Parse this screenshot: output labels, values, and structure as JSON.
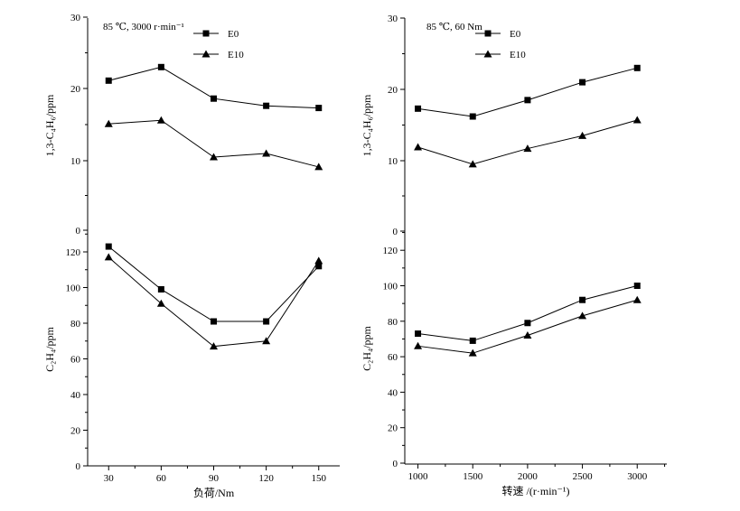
{
  "chart_data": [
    {
      "id": "a1",
      "type": "line",
      "annotation": "85 ℃, 3000 r·min⁻¹",
      "ylabel": "1,3-C₄H₆/ppm",
      "ylim": [
        0,
        30
      ],
      "yticks": [
        0,
        10,
        20,
        30
      ],
      "x": [
        30,
        60,
        90,
        120,
        150
      ],
      "series": [
        {
          "name": "E0",
          "marker": "square",
          "values": [
            21.1,
            23.0,
            18.6,
            17.6,
            17.3
          ]
        },
        {
          "name": "E10",
          "marker": "triangle",
          "values": [
            15.1,
            15.6,
            10.5,
            11.0,
            9.1
          ]
        }
      ],
      "legend": "top-center"
    },
    {
      "id": "a2",
      "type": "line",
      "xlabel": "负荷/Nm",
      "ylabel": "C₂H₄/ppm",
      "ylim": [
        0,
        130
      ],
      "yticks": [
        0,
        20,
        40,
        60,
        80,
        100,
        120
      ],
      "xticks": [
        30,
        60,
        90,
        120,
        150
      ],
      "x": [
        30,
        60,
        90,
        120,
        150
      ],
      "series": [
        {
          "name": "E0",
          "marker": "square",
          "values": [
            123,
            99,
            81,
            81,
            112
          ]
        },
        {
          "name": "E10",
          "marker": "triangle",
          "values": [
            117,
            91,
            67,
            70,
            115
          ]
        }
      ]
    },
    {
      "id": "b1",
      "type": "line",
      "annotation": "85 ℃, 60 Nm",
      "ylabel": "1,3-C₄H₆/ppm",
      "ylim": [
        0,
        30
      ],
      "yticks": [
        0,
        10,
        20,
        30
      ],
      "x": [
        1000,
        1500,
        2000,
        2500,
        3000
      ],
      "series": [
        {
          "name": "E0",
          "marker": "square",
          "values": [
            17.3,
            16.2,
            18.5,
            21.0,
            23.0
          ]
        },
        {
          "name": "E10",
          "marker": "triangle",
          "values": [
            11.9,
            9.5,
            11.7,
            13.5,
            15.7
          ]
        }
      ],
      "legend": "top-center"
    },
    {
      "id": "b2",
      "type": "line",
      "xlabel": "转速 /(r·min⁻¹)",
      "ylabel": "C₂H₄/ppm",
      "ylim": [
        0,
        130
      ],
      "yticks": [
        0,
        20,
        40,
        60,
        80,
        100,
        120
      ],
      "xticks": [
        1000,
        1500,
        2000,
        2500,
        3000
      ],
      "x": [
        1000,
        1500,
        2000,
        2500,
        3000
      ],
      "series": [
        {
          "name": "E0",
          "marker": "square",
          "values": [
            73,
            69,
            79,
            92,
            100
          ]
        },
        {
          "name": "E10",
          "marker": "triangle",
          "values": [
            66,
            62,
            72,
            83,
            92
          ]
        }
      ]
    }
  ]
}
